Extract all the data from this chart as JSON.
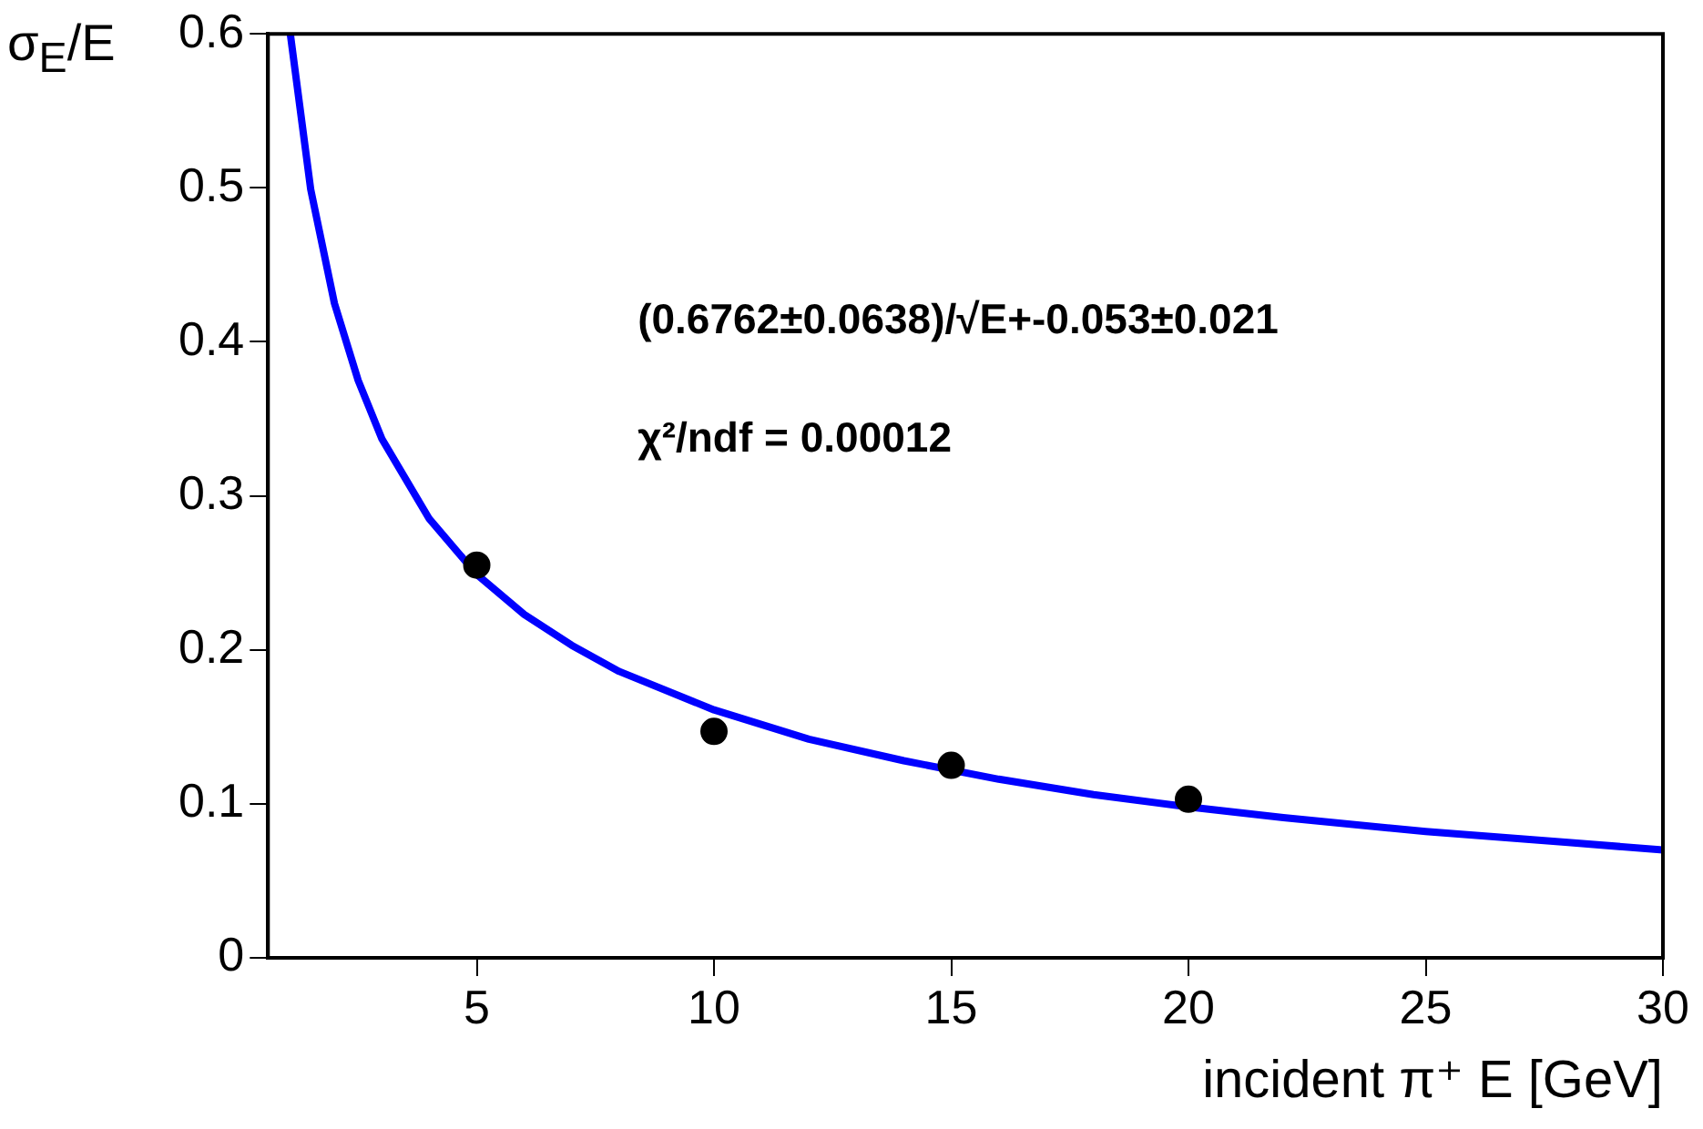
{
  "chart_data": {
    "type": "scatter",
    "xlabel": "incident π⁺ E [GeV]",
    "ylabel": "σ$_{E}$/E",
    "annotations": [
      "(0.6762±0.0638)/√E+-0.053±0.021",
      "χ²/ndf = 0.00012"
    ],
    "xlim": [
      0.6,
      30
    ],
    "xticks": [
      5,
      10,
      15,
      20,
      25,
      30
    ],
    "ylim": [
      0,
      0.6
    ],
    "yticks": [
      0,
      0.1,
      0.2,
      0.3,
      0.4,
      0.5,
      0.6
    ],
    "series": [
      {
        "type": "scatter",
        "color": "#000000",
        "marker": "circle",
        "x": [
          5,
          10,
          15,
          20
        ],
        "values": [
          0.255,
          0.147,
          0.125,
          0.103
        ]
      },
      {
        "type": "line",
        "color": "#0000ff",
        "marker": "none",
        "x": [
          1.07,
          1.5,
          2,
          2.5,
          3,
          4,
          5,
          6,
          7,
          8,
          10,
          12,
          14,
          16,
          18,
          20,
          22,
          25,
          28,
          30
        ],
        "values": [
          0.6,
          0.499,
          0.425,
          0.375,
          0.337,
          0.285,
          0.249,
          0.223,
          0.203,
          0.186,
          0.161,
          0.142,
          0.128,
          0.116,
          0.106,
          0.098,
          0.091,
          0.082,
          0.075,
          0.07
        ]
      }
    ]
  }
}
